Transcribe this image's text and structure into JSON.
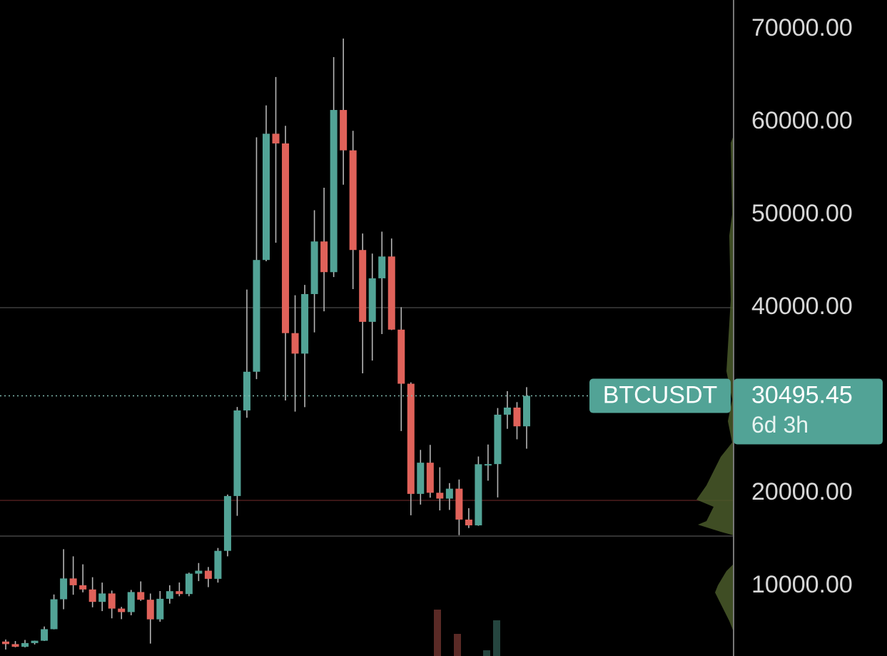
{
  "chart_data": {
    "type": "candlestick",
    "symbol": "BTCUSDT",
    "countdown": "6d 3h",
    "up_color": "#52a396",
    "down_color": "#e0625a",
    "ylim": [
      2460,
      73150
    ],
    "yticks": [
      {
        "value": 10000,
        "label": "10000.00"
      },
      {
        "value": 20000,
        "label": "20000.00"
      },
      {
        "value": 40000,
        "label": "40000.00"
      },
      {
        "value": 50000,
        "label": "50000.00"
      },
      {
        "value": 60000,
        "label": "60000.00"
      },
      {
        "value": 70000,
        "label": "70000.00"
      }
    ],
    "grid_values": [
      40000
    ],
    "levels": [
      {
        "value": 19230,
        "color": "#3a1616"
      },
      {
        "value": 15380,
        "color": "#333333"
      }
    ],
    "open": [
      4017,
      3742,
      3457,
      3854,
      4105,
      5350,
      8574,
      10817,
      10085,
      9630,
      8293,
      9199,
      7569,
      7193,
      9350,
      8523,
      6410,
      8624,
      9446,
      9135,
      11335,
      11650,
      10776,
      13791,
      19700,
      28923,
      33092,
      45135,
      58740,
      57694,
      37253,
      35045,
      41462,
      47130,
      43824,
      61300,
      56950,
      46210,
      38470,
      43160,
      45510,
      37630,
      31800,
      19930,
      23290,
      20050,
      19420,
      20490,
      17160,
      16540,
      23125,
      23140,
      28465,
      29230,
      27210
    ],
    "high": [
      4236,
      4070,
      4190,
      4120,
      5640,
      9090,
      13970,
      13200,
      12340,
      10950,
      10370,
      9510,
      7750,
      9580,
      10500,
      9190,
      9460,
      10080,
      10380,
      11440,
      12480,
      12050,
      14100,
      19860,
      29300,
      41950,
      58350,
      61790,
      64850,
      59590,
      41330,
      42450,
      50500,
      52920,
      67000,
      69000,
      59050,
      47990,
      45820,
      48190,
      47450,
      40050,
      31950,
      24670,
      25210,
      22800,
      21090,
      21480,
      18390,
      23960,
      25250,
      29180,
      31000,
      29820,
      31430
    ],
    "low": [
      3156,
      3400,
      3390,
      3700,
      4080,
      5330,
      7500,
      9060,
      9320,
      7710,
      7300,
      6520,
      6430,
      6850,
      8400,
      3800,
      6150,
      8100,
      8900,
      8900,
      10530,
      9880,
      10370,
      13200,
      17570,
      28130,
      32300,
      45000,
      47000,
      30000,
      28800,
      29280,
      37330,
      39600,
      43300,
      53250,
      42000,
      32920,
      34300,
      37150,
      37580,
      26700,
      17620,
      18780,
      19520,
      18150,
      18200,
      15480,
      16250,
      16490,
      21350,
      19550,
      26940,
      25810,
      24800
    ],
    "close": [
      3742,
      3457,
      3854,
      4105,
      5350,
      8574,
      10817,
      10085,
      9630,
      8293,
      9199,
      7569,
      7193,
      9350,
      8523,
      6410,
      8624,
      9446,
      9135,
      11335,
      11650,
      10776,
      13791,
      19700,
      28923,
      33092,
      45135,
      58740,
      57694,
      37253,
      35045,
      41462,
      47130,
      43824,
      61300,
      56950,
      46210,
      38470,
      43160,
      45510,
      37630,
      31800,
      19930,
      23290,
      20050,
      19420,
      20490,
      17160,
      16540,
      23125,
      23140,
      28465,
      29230,
      27210,
      30495.45
    ]
  }
}
